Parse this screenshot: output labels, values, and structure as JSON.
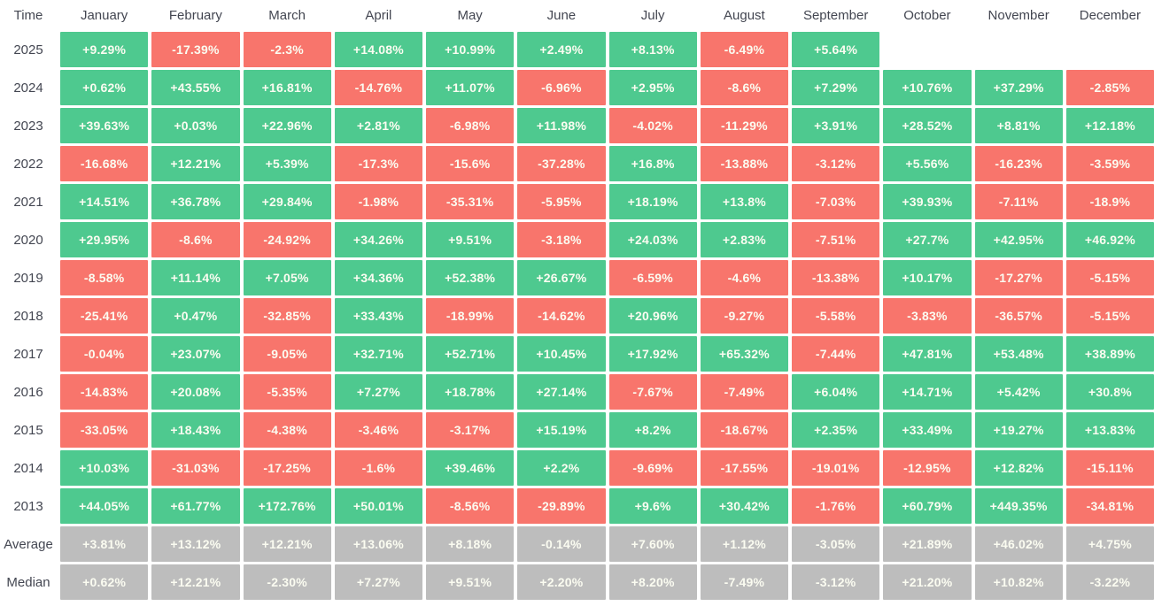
{
  "colors": {
    "positive": "#4ec98f",
    "negative": "#f8756c",
    "summary": "#bdbdbd",
    "cell_text": "#fbfcf1",
    "label_text": "#434651",
    "background": "#ffffff"
  },
  "chart_data": {
    "type": "heatmap",
    "title": "",
    "legend_position": "none",
    "grid": false,
    "value_format": "signed percent",
    "columns": [
      "Time",
      "January",
      "February",
      "March",
      "April",
      "May",
      "June",
      "July",
      "August",
      "September",
      "October",
      "November",
      "December"
    ],
    "rows": [
      {
        "label": "2025",
        "kind": "year",
        "values": [
          "+9.29%",
          "-17.39%",
          "-2.3%",
          "+14.08%",
          "+10.99%",
          "+2.49%",
          "+8.13%",
          "-6.49%",
          "+5.64%",
          "",
          "",
          ""
        ]
      },
      {
        "label": "2024",
        "kind": "year",
        "values": [
          "+0.62%",
          "+43.55%",
          "+16.81%",
          "-14.76%",
          "+11.07%",
          "-6.96%",
          "+2.95%",
          "-8.6%",
          "+7.29%",
          "+10.76%",
          "+37.29%",
          "-2.85%"
        ]
      },
      {
        "label": "2023",
        "kind": "year",
        "values": [
          "+39.63%",
          "+0.03%",
          "+22.96%",
          "+2.81%",
          "-6.98%",
          "+11.98%",
          "-4.02%",
          "-11.29%",
          "+3.91%",
          "+28.52%",
          "+8.81%",
          "+12.18%"
        ]
      },
      {
        "label": "2022",
        "kind": "year",
        "values": [
          "-16.68%",
          "+12.21%",
          "+5.39%",
          "-17.3%",
          "-15.6%",
          "-37.28%",
          "+16.8%",
          "-13.88%",
          "-3.12%",
          "+5.56%",
          "-16.23%",
          "-3.59%"
        ]
      },
      {
        "label": "2021",
        "kind": "year",
        "values": [
          "+14.51%",
          "+36.78%",
          "+29.84%",
          "-1.98%",
          "-35.31%",
          "-5.95%",
          "+18.19%",
          "+13.8%",
          "-7.03%",
          "+39.93%",
          "-7.11%",
          "-18.9%"
        ]
      },
      {
        "label": "2020",
        "kind": "year",
        "values": [
          "+29.95%",
          "-8.6%",
          "-24.92%",
          "+34.26%",
          "+9.51%",
          "-3.18%",
          "+24.03%",
          "+2.83%",
          "-7.51%",
          "+27.7%",
          "+42.95%",
          "+46.92%"
        ]
      },
      {
        "label": "2019",
        "kind": "year",
        "values": [
          "-8.58%",
          "+11.14%",
          "+7.05%",
          "+34.36%",
          "+52.38%",
          "+26.67%",
          "-6.59%",
          "-4.6%",
          "-13.38%",
          "+10.17%",
          "-17.27%",
          "-5.15%"
        ]
      },
      {
        "label": "2018",
        "kind": "year",
        "values": [
          "-25.41%",
          "+0.47%",
          "-32.85%",
          "+33.43%",
          "-18.99%",
          "-14.62%",
          "+20.96%",
          "-9.27%",
          "-5.58%",
          "-3.83%",
          "-36.57%",
          "-5.15%"
        ]
      },
      {
        "label": "2017",
        "kind": "year",
        "values": [
          "-0.04%",
          "+23.07%",
          "-9.05%",
          "+32.71%",
          "+52.71%",
          "+10.45%",
          "+17.92%",
          "+65.32%",
          "-7.44%",
          "+47.81%",
          "+53.48%",
          "+38.89%"
        ]
      },
      {
        "label": "2016",
        "kind": "year",
        "values": [
          "-14.83%",
          "+20.08%",
          "-5.35%",
          "+7.27%",
          "+18.78%",
          "+27.14%",
          "-7.67%",
          "-7.49%",
          "+6.04%",
          "+14.71%",
          "+5.42%",
          "+30.8%"
        ]
      },
      {
        "label": "2015",
        "kind": "year",
        "values": [
          "-33.05%",
          "+18.43%",
          "-4.38%",
          "-3.46%",
          "-3.17%",
          "+15.19%",
          "+8.2%",
          "-18.67%",
          "+2.35%",
          "+33.49%",
          "+19.27%",
          "+13.83%"
        ]
      },
      {
        "label": "2014",
        "kind": "year",
        "values": [
          "+10.03%",
          "-31.03%",
          "-17.25%",
          "-1.6%",
          "+39.46%",
          "+2.2%",
          "-9.69%",
          "-17.55%",
          "-19.01%",
          "-12.95%",
          "+12.82%",
          "-15.11%"
        ]
      },
      {
        "label": "2013",
        "kind": "year",
        "values": [
          "+44.05%",
          "+61.77%",
          "+172.76%",
          "+50.01%",
          "-8.56%",
          "-29.89%",
          "+9.6%",
          "+30.42%",
          "-1.76%",
          "+60.79%",
          "+449.35%",
          "-34.81%"
        ]
      },
      {
        "label": "Average",
        "kind": "summary",
        "values": [
          "+3.81%",
          "+13.12%",
          "+12.21%",
          "+13.06%",
          "+8.18%",
          "-0.14%",
          "+7.60%",
          "+1.12%",
          "-3.05%",
          "+21.89%",
          "+46.02%",
          "+4.75%"
        ]
      },
      {
        "label": "Median",
        "kind": "summary",
        "values": [
          "+0.62%",
          "+12.21%",
          "-2.30%",
          "+7.27%",
          "+9.51%",
          "+2.20%",
          "+8.20%",
          "-7.49%",
          "-3.12%",
          "+21.20%",
          "+10.82%",
          "-3.22%"
        ]
      }
    ]
  }
}
